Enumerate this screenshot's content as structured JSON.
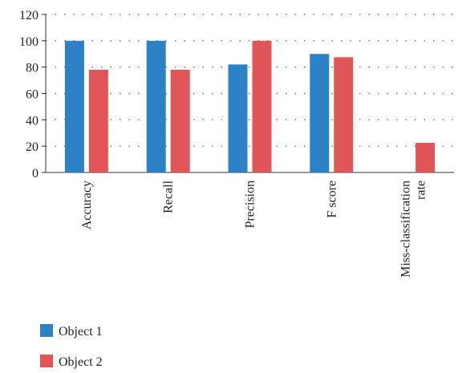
{
  "chart_data": {
    "type": "bar",
    "categories": [
      "Accuracy",
      "Recall",
      "Precision",
      "F score",
      "Miss-classification rate"
    ],
    "category_lines": [
      [
        "Accuracy"
      ],
      [
        "Recall"
      ],
      [
        "Precision"
      ],
      [
        "F score"
      ],
      [
        "Miss-classification",
        "rate"
      ]
    ],
    "series": [
      {
        "name": "Object 1",
        "color": "#2c82c4",
        "values": [
          100,
          100,
          82,
          90,
          0
        ]
      },
      {
        "name": "Object 2",
        "color": "#e05656",
        "values": [
          78,
          78,
          100,
          87.5,
          22.5
        ]
      }
    ],
    "ylim": [
      0,
      120
    ],
    "yticks": [
      0,
      20,
      40,
      60,
      80,
      100,
      120
    ],
    "grid": true,
    "legend_position": "bottom-left",
    "title": "",
    "xlabel": "",
    "ylabel": ""
  }
}
